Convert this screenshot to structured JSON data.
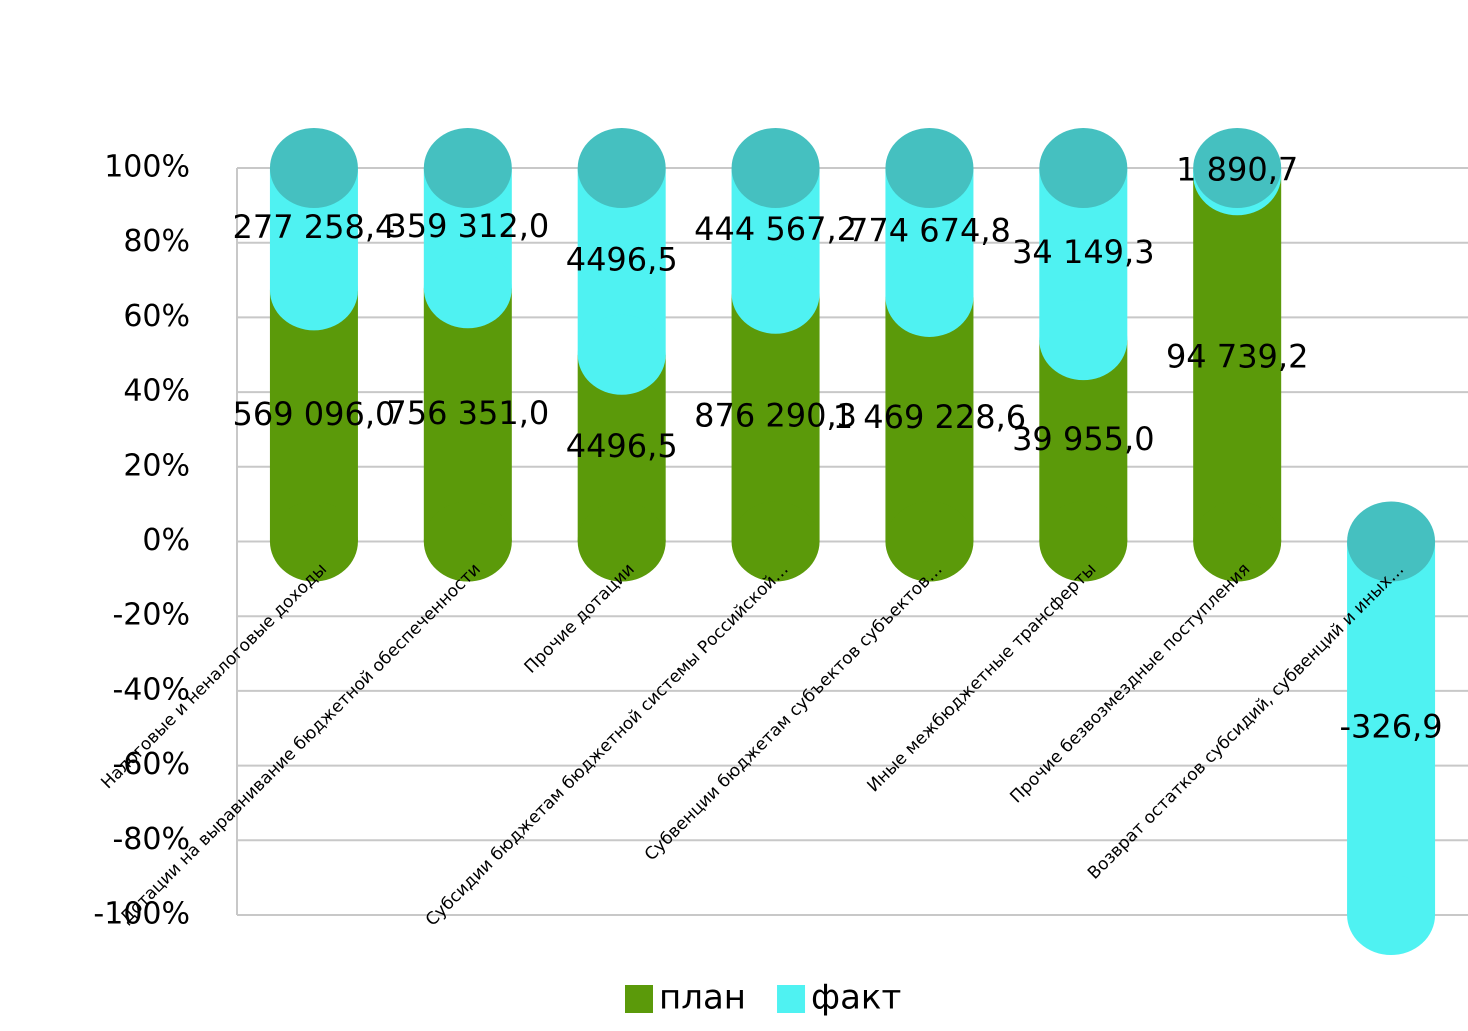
{
  "chart_data": {
    "type": "stacked-cylinder-100",
    "categories": [
      "Налоговые и неналоговые доходы",
      "Дотации на выравнивание бюджетной обеспеченности",
      "Прочие дотации",
      "Субсидии бюджетам бюджетной системы Российской…",
      "Субвенции бюджетам субъектов субъектов…",
      "Иные межбюджетные трансферты",
      "Прочие безвозмездные поступления",
      "Возврат остатков субсидий, субвенций и иных…"
    ],
    "series": [
      {
        "name": "план",
        "color": "#5b9a0a",
        "values": [
          569096.0,
          756351.0,
          4496.5,
          876290.3,
          1469228.6,
          39955.0,
          94739.2,
          null
        ],
        "value_labels": [
          "569 096,0",
          "756 351,0",
          "4496,5",
          "876 290,3",
          "1 469 228,6",
          "39 955,0",
          "94 739,2",
          null
        ]
      },
      {
        "name": "факт",
        "color": "#4ff2f2",
        "values": [
          277258.4,
          359312.0,
          4496.5,
          444567.2,
          774674.8,
          34149.3,
          1890.7,
          -326.9
        ],
        "value_labels": [
          "277 258,4",
          "359 312,0",
          "4496,5",
          "444 567,2",
          "774 674,8",
          "34 149,3",
          "1 890,7",
          "-326,9"
        ]
      }
    ],
    "ylim": [
      -100,
      100
    ],
    "yticks": [
      {
        "value": -100,
        "label": "-100%"
      },
      {
        "value": -80,
        "label": "-80%"
      },
      {
        "value": -60,
        "label": "-60%"
      },
      {
        "value": -40,
        "label": "-40%"
      },
      {
        "value": -20,
        "label": "-20%"
      },
      {
        "value": 0,
        "label": "0%"
      },
      {
        "value": 20,
        "label": "20%"
      },
      {
        "value": 40,
        "label": "40%"
      },
      {
        "value": 60,
        "label": "60%"
      },
      {
        "value": 80,
        "label": "80%"
      },
      {
        "value": 100,
        "label": "100%"
      }
    ],
    "grid": true,
    "legend": "bottom"
  }
}
